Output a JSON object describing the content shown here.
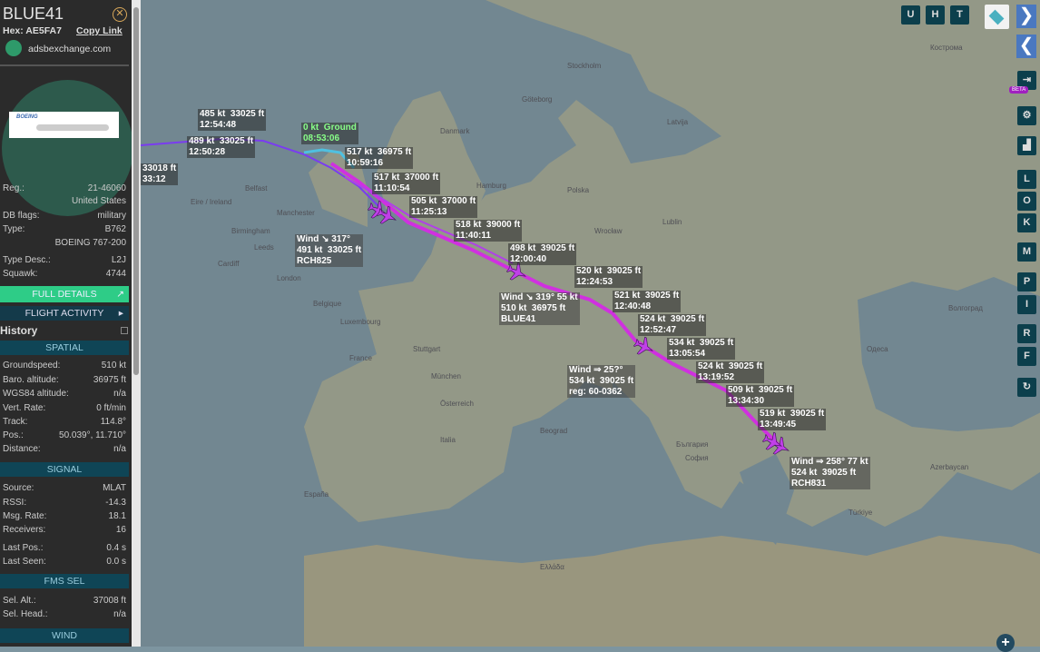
{
  "sidebar": {
    "callsign": "BLUE41",
    "hex_label": "Hex:",
    "hex": "AE5FA7",
    "copy_link": "Copy Link",
    "source_site": "adsbexchange.com",
    "photo_brand": "BOEING",
    "info": [
      {
        "label": "Reg.:",
        "value": "21-46060"
      },
      {
        "label": "",
        "value": "United States"
      },
      {
        "label": "DB flags:",
        "value": "military"
      },
      {
        "label": "Type:",
        "value": "B762"
      },
      {
        "label": "",
        "value": "BOEING 767-200"
      },
      {
        "label": "Type Desc.:",
        "value": "L2J"
      },
      {
        "label": "Squawk:",
        "value": "4744"
      }
    ],
    "full_details": "FULL DETAILS",
    "flight_activity": "FLIGHT ACTIVITY",
    "history": "History",
    "spatial_title": "SPATIAL",
    "spatial": [
      {
        "label": "Groundspeed:",
        "value": "510 kt"
      },
      {
        "label": "Baro. altitude:",
        "value": "36975 ft"
      },
      {
        "label": "WGS84 altitude:",
        "value": "n/a"
      },
      {
        "label": "Vert. Rate:",
        "value": "0 ft/min"
      },
      {
        "label": "Track:",
        "value": "114.8°"
      },
      {
        "label": "Pos.:",
        "value": "50.039°, 11.710°"
      },
      {
        "label": "Distance:",
        "value": "n/a"
      }
    ],
    "signal_title": "SIGNAL",
    "signal": [
      {
        "label": "Source:",
        "value": "MLAT"
      },
      {
        "label": "RSSI:",
        "value": "-14.3"
      },
      {
        "label": "Msg. Rate:",
        "value": "18.1"
      },
      {
        "label": "Receivers:",
        "value": "16"
      },
      {
        "label": "Last Pos.:",
        "value": "0.4 s"
      },
      {
        "label": "Last Seen:",
        "value": "0.0 s"
      }
    ],
    "fms_title": "FMS SEL",
    "fms": [
      {
        "label": "Sel. Alt.:",
        "value": "37008 ft"
      },
      {
        "label": "Sel. Head.:",
        "value": "n/a"
      }
    ],
    "wind_title": "WIND"
  },
  "toolbar": {
    "top": [
      "U",
      "H",
      "T"
    ],
    "side": [
      "L",
      "O",
      "K",
      "M",
      "P",
      "I",
      "R",
      "F"
    ],
    "beta": "BETA",
    "next": "❯",
    "prev": "❮",
    "zoom_in": "+"
  },
  "track_labels": [
    "485 kt  33025 ft\n12:54:48",
    "489 kt  33025 ft\n12:50:28",
    "33018 ft\n33:12",
    "0 kt  Ground\n08:53:06",
    "517 kt  36975 ft\n10:59:16",
    "517 kt  37000 ft\n11:10:54",
    "505 kt  37000 ft\n11:25:13",
    "518 kt  39000 ft\n11:40:11",
    "498 kt  39025 ft\n12:00:40",
    "520 kt  39025 ft\n12:24:53",
    "521 kt  39025 ft\n12:40:48",
    "524 kt  39025 ft\n12:52:47",
    "534 kt  39025 ft\n13:05:54",
    "524 kt  39025 ft\n13:19:52",
    "509 kt  39025 ft\n13:34:30",
    "519 kt  39025 ft\n13:49:45"
  ],
  "aircraft_tags": [
    "Wind ↘ 317°\n491 kt  33025 ft\nRCH825",
    "Wind ↘ 319° 55 kt\n510 kt  36975 ft\nBLUE41",
    "Wind ⇒ 25?°\n534 kt  39025 ft\nreg: 60-0362",
    "Wind ⇒ 258° 77 kt\n524 kt  39025 ft\nRCH831"
  ],
  "places": [
    "Eire / Ireland",
    "Belfast",
    "Manchester",
    "Birmingham",
    "London",
    "Cardiff",
    "Leeds",
    "Danmark",
    "Göteborg",
    "Stockholm",
    "Hamburg",
    "Belgique",
    "Luxembourg",
    "France",
    "Stuttgart",
    "München",
    "Polska",
    "Wrocław",
    "Lublin",
    "Österreich",
    "Beograd",
    "България",
    "София",
    "Одеса",
    "Кострома",
    "Волгоград",
    "Latvija",
    "España",
    "Italia",
    "Ελλάδα",
    "Türkiye",
    "Azerbaycan"
  ]
}
